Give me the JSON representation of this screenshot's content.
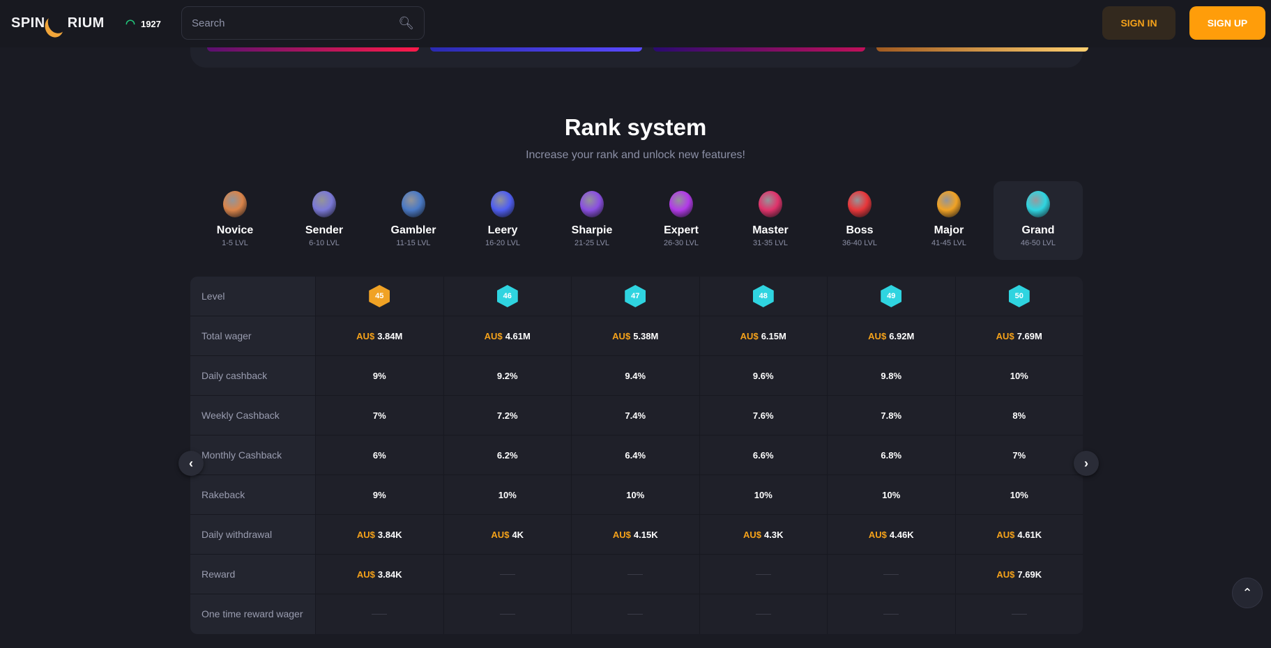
{
  "header": {
    "logo": "SPINARIUM",
    "logo_left": "SPIN",
    "logo_right": "RIUM",
    "online_count": "1927",
    "search_placeholder": "Search",
    "sign_in": "SIGN IN",
    "sign_up": "SIGN UP"
  },
  "section": {
    "title": "Rank system",
    "subtitle": "Increase your rank and unlock new features!"
  },
  "ranks": [
    {
      "name": "Novice",
      "levels": "1-5 LVL",
      "color": "#d9844a"
    },
    {
      "name": "Sender",
      "levels": "6-10 LVL",
      "color": "#7a78d6"
    },
    {
      "name": "Gambler",
      "levels": "11-15 LVL",
      "color": "#4a79c4"
    },
    {
      "name": "Leery",
      "levels": "16-20 LVL",
      "color": "#4f5ef0"
    },
    {
      "name": "Sharpie",
      "levels": "21-25 LVL",
      "color": "#8a4fe0"
    },
    {
      "name": "Expert",
      "levels": "26-30 LVL",
      "color": "#b23ae8"
    },
    {
      "name": "Master",
      "levels": "31-35 LVL",
      "color": "#e0336b"
    },
    {
      "name": "Boss",
      "levels": "36-40 LVL",
      "color": "#e8363a"
    },
    {
      "name": "Major",
      "levels": "41-45 LVL",
      "color": "#f0a225"
    },
    {
      "name": "Grand",
      "levels": "46-50 LVL",
      "color": "#2fd4e0"
    }
  ],
  "table": {
    "currency": "AU$",
    "labels": [
      "Level",
      "Total wager",
      "Daily cashback",
      "Weekly Cashback",
      "Monthly Cashback",
      "Rakeback",
      "Daily withdrawal",
      "Reward",
      "One time reward wager"
    ],
    "levels": [
      "45",
      "46",
      "47",
      "48",
      "49",
      "50"
    ],
    "total_wager": [
      "3.84M",
      "4.61M",
      "5.38M",
      "6.15M",
      "6.92M",
      "7.69M"
    ],
    "daily_cashback": [
      "9%",
      "9.2%",
      "9.4%",
      "9.6%",
      "9.8%",
      "10%"
    ],
    "weekly_cashback": [
      "7%",
      "7.2%",
      "7.4%",
      "7.6%",
      "7.8%",
      "8%"
    ],
    "monthly_cashback": [
      "6%",
      "6.2%",
      "6.4%",
      "6.6%",
      "6.8%",
      "7%"
    ],
    "rakeback": [
      "9%",
      "10%",
      "10%",
      "10%",
      "10%",
      "10%"
    ],
    "daily_withdrawal": [
      "3.84K",
      "4K",
      "4.15K",
      "4.3K",
      "4.46K",
      "4.61K"
    ],
    "reward": [
      "3.84K",
      null,
      null,
      null,
      null,
      "7.69K"
    ],
    "one_time_reward_wager": [
      null,
      null,
      null,
      null,
      null,
      null
    ]
  }
}
